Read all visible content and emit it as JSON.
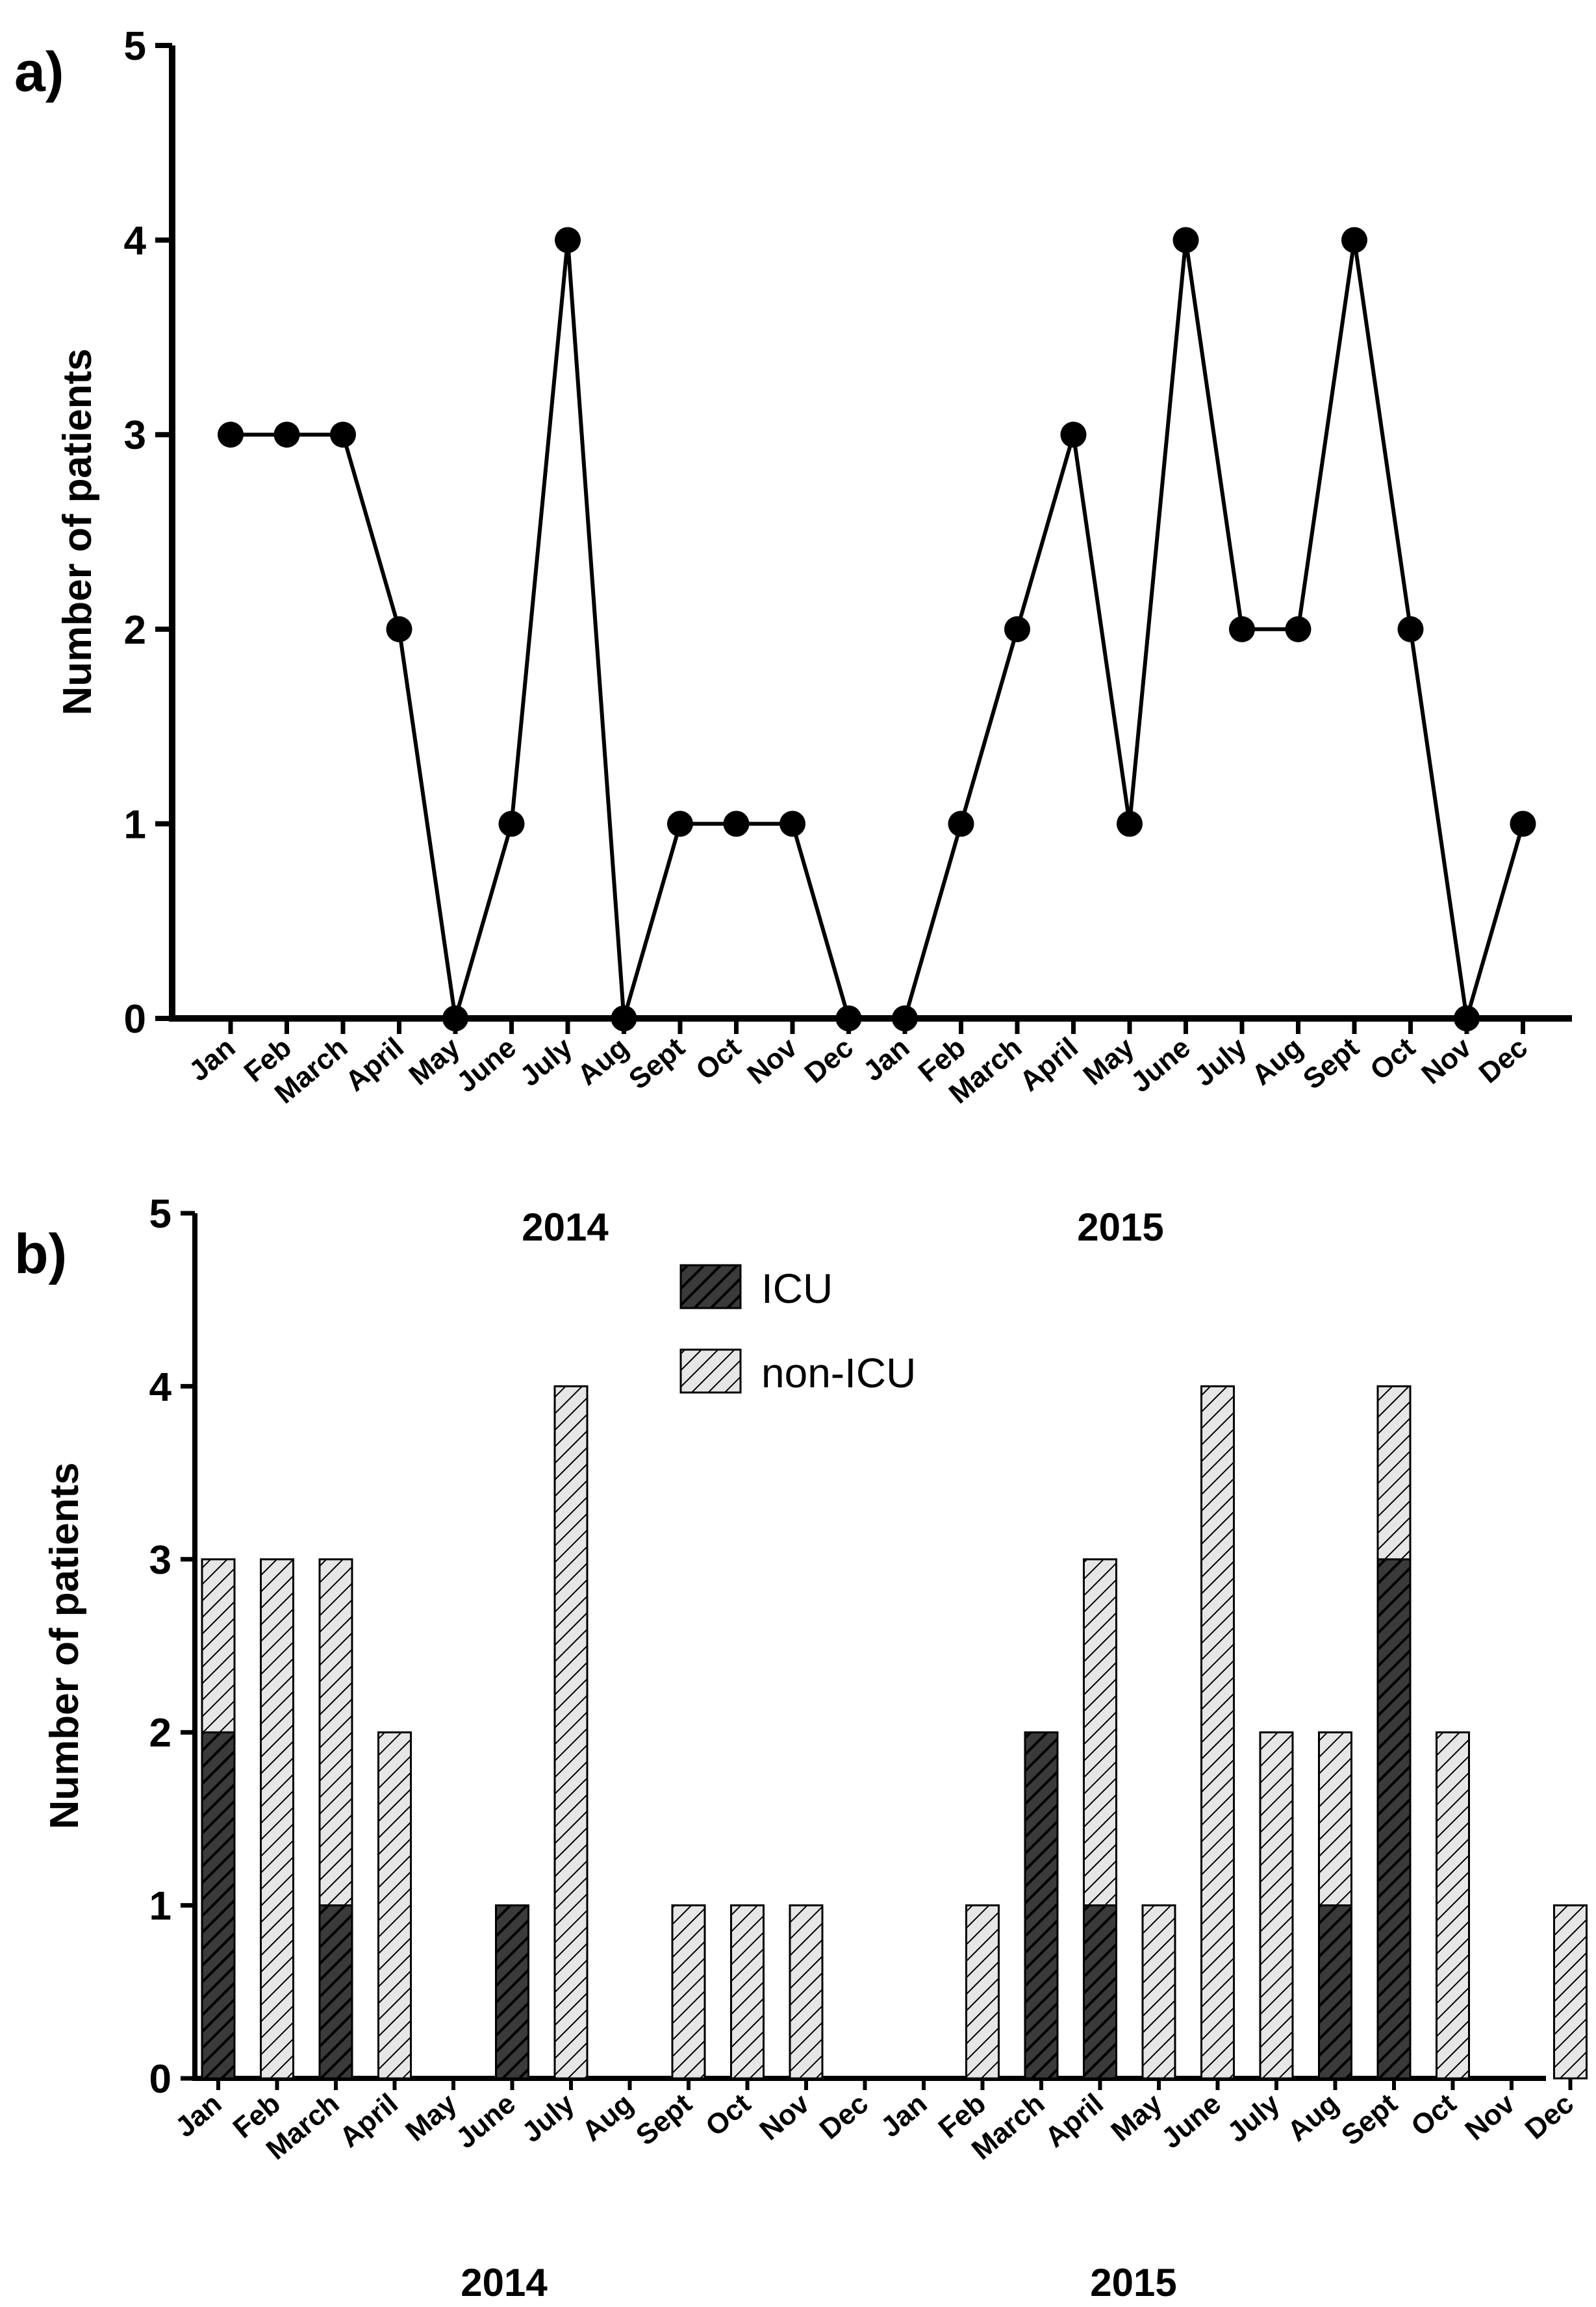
{
  "colors": {
    "line": "#000000",
    "icu_fill": "#3a3a3a",
    "non_icu_fill": "#e6e6e6",
    "hatch": "#000000"
  },
  "chart_data": [
    {
      "panel": "a)",
      "type": "line",
      "ylabel": "Number of patients",
      "ylim": [
        0,
        5
      ],
      "yticks": [
        0,
        1,
        2,
        3,
        4,
        5
      ],
      "grid": false,
      "categories": [
        "Jan",
        "Feb",
        "March",
        "April",
        "May",
        "June",
        "July",
        "Aug",
        "Sept",
        "Oct",
        "Nov",
        "Dec",
        "Jan",
        "Feb",
        "March",
        "April",
        "May",
        "June",
        "July",
        "Aug",
        "Sept",
        "Oct",
        "Nov",
        "Dec"
      ],
      "values": [
        3,
        3,
        3,
        2,
        0,
        1,
        4,
        0,
        1,
        1,
        1,
        0,
        0,
        1,
        2,
        3,
        1,
        4,
        2,
        2,
        4,
        2,
        0,
        1
      ]
    },
    {
      "panel": "b)",
      "type": "bar",
      "stacked": true,
      "ylabel": "Number of patients",
      "ylim": [
        0,
        5
      ],
      "yticks": [
        0,
        1,
        2,
        3,
        4,
        5
      ],
      "grid": false,
      "top_year_labels": [
        "2014",
        "2015"
      ],
      "bottom_year_labels": [
        "2014",
        "2015"
      ],
      "legend_position": "top-center",
      "categories": [
        "Jan",
        "Feb",
        "March",
        "April",
        "May",
        "June",
        "July",
        "Aug",
        "Sept",
        "Oct",
        "Nov",
        "Dec",
        "Jan",
        "Feb",
        "March",
        "April",
        "May",
        "June",
        "July",
        "Aug",
        "Sept",
        "Oct",
        "Nov",
        "Dec"
      ],
      "series": [
        {
          "name": "ICU",
          "values": [
            2,
            0,
            1,
            0,
            0,
            1,
            0,
            0,
            0,
            0,
            0,
            0,
            0,
            0,
            2,
            1,
            0,
            0,
            0,
            1,
            3,
            0,
            0,
            0
          ]
        },
        {
          "name": "non-ICU",
          "values": [
            1,
            3,
            2,
            2,
            0,
            0,
            4,
            0,
            1,
            1,
            1,
            0,
            0,
            1,
            0,
            2,
            1,
            4,
            2,
            1,
            1,
            2,
            0,
            1
          ]
        }
      ]
    }
  ]
}
